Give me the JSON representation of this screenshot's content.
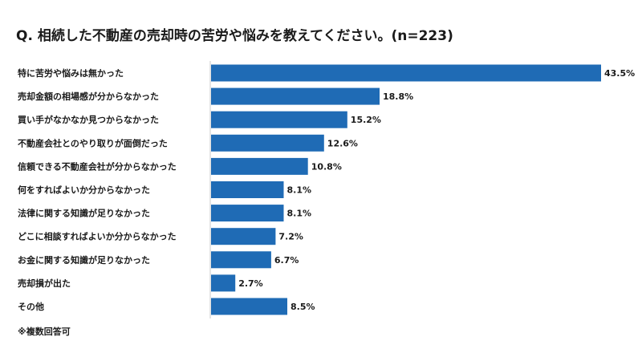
{
  "title": "Q. 相続した不動産の売却時の苦労や悩みを教えてください。(n=223)",
  "footnote": "※複数回答可",
  "chart_data": {
    "type": "bar",
    "orientation": "horizontal",
    "categories": [
      "特に苦労や悩みは無かった",
      "売却金額の相場感が分からなかった",
      "買い手がなかなか見つからなかった",
      "不動産会社とのやり取りが面倒だった",
      "信頼できる不動産会社が分からなかった",
      "何をすればよいか分からなかった",
      "法律に関する知識が足りなかった",
      "どこに相談すればよいか分からなかった",
      "お金に関する知識が足りなかった",
      "売却損が出た",
      "その他"
    ],
    "values": [
      43.5,
      18.8,
      15.2,
      12.6,
      10.8,
      8.1,
      8.1,
      7.2,
      6.7,
      2.7,
      8.5
    ],
    "value_labels": [
      "43.5%",
      "18.8%",
      "15.2%",
      "12.6%",
      "10.8%",
      "8.1%",
      "8.1%",
      "7.2%",
      "6.7%",
      "2.7%",
      "8.5%"
    ],
    "unit": "%",
    "xlim": [
      0,
      43.5
    ],
    "bar_color": "#1f6bb5",
    "grid": false,
    "legend": "none"
  }
}
